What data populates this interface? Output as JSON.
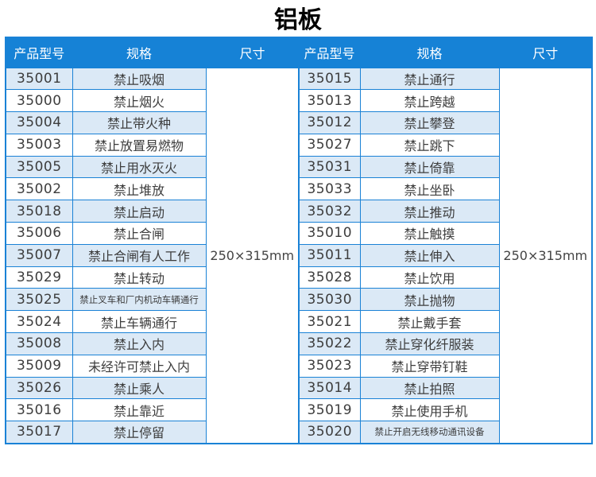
{
  "title": "铝板",
  "colors": {
    "header_blue": "#1682d6",
    "border_blue": "#1a82d6",
    "stripe_blue": "#dbe9f6",
    "text_dark": "#3d3d3d"
  },
  "table": {
    "headers": [
      "产品型号",
      "规格",
      "尺寸",
      "产品型号",
      "规格",
      "尺寸"
    ],
    "left": {
      "size": "250×315mm",
      "rows": [
        {
          "model": "35001",
          "spec": "禁止吸烟"
        },
        {
          "model": "35000",
          "spec": "禁止烟火"
        },
        {
          "model": "35004",
          "spec": "禁止带火种"
        },
        {
          "model": "35003",
          "spec": "禁止放置易燃物"
        },
        {
          "model": "35005",
          "spec": "禁止用水灭火"
        },
        {
          "model": "35002",
          "spec": "禁止堆放"
        },
        {
          "model": "35018",
          "spec": "禁止启动"
        },
        {
          "model": "35006",
          "spec": "禁止合闸"
        },
        {
          "model": "35007",
          "spec": "禁止合闸有人工作"
        },
        {
          "model": "35029",
          "spec": "禁止转动"
        },
        {
          "model": "35025",
          "spec": "禁止叉车和厂内机动车辆通行",
          "small": true
        },
        {
          "model": "35024",
          "spec": "禁止车辆通行"
        },
        {
          "model": "35008",
          "spec": "禁止入内"
        },
        {
          "model": "35009",
          "spec": "未经许可禁止入内"
        },
        {
          "model": "35026",
          "spec": "禁止乘人"
        },
        {
          "model": "35016",
          "spec": "禁止靠近"
        },
        {
          "model": "35017",
          "spec": "禁止停留"
        }
      ]
    },
    "right": {
      "size": "250×315mm",
      "rows": [
        {
          "model": "35015",
          "spec": "禁止通行"
        },
        {
          "model": "35013",
          "spec": "禁止跨越"
        },
        {
          "model": "35012",
          "spec": "禁止攀登"
        },
        {
          "model": "35027",
          "spec": "禁止跳下"
        },
        {
          "model": "35031",
          "spec": "禁止倚靠"
        },
        {
          "model": "35033",
          "spec": "禁止坐卧"
        },
        {
          "model": "35032",
          "spec": "禁止推动"
        },
        {
          "model": "35010",
          "spec": "禁止触摸"
        },
        {
          "model": "35011",
          "spec": "禁止伸入"
        },
        {
          "model": "35028",
          "spec": "禁止饮用"
        },
        {
          "model": "35030",
          "spec": "禁止抛物"
        },
        {
          "model": "35021",
          "spec": "禁止戴手套"
        },
        {
          "model": "35022",
          "spec": "禁止穿化纤服装"
        },
        {
          "model": "35023",
          "spec": "禁止穿带钉鞋"
        },
        {
          "model": "35014",
          "spec": "禁止拍照"
        },
        {
          "model": "35019",
          "spec": "禁止使用手机"
        },
        {
          "model": "35020",
          "spec": "禁止开启无线移动通讯设备",
          "small": true
        }
      ]
    }
  }
}
